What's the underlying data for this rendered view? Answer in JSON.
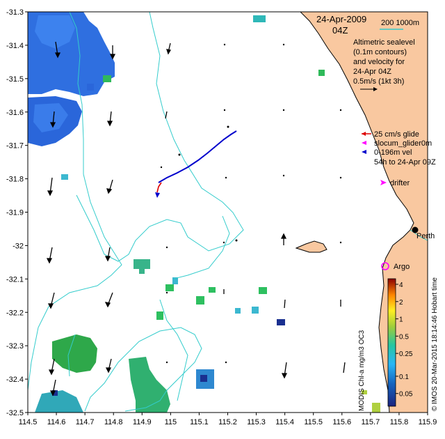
{
  "map": {
    "date": "24-Apr-2009",
    "time": "04Z",
    "scale_label": "200  1000m",
    "legend_lines": [
      "Altimetric sealevel",
      "(0.1m contours)",
      "and velocity for",
      "24-Apr 04Z",
      "0.5m/s (1kt 3h)"
    ],
    "track_legend": [
      {
        "label": "25 cm/s glide",
        "color": "#dd0000"
      },
      {
        "label": "slocum_glider0m",
        "color": "#ff00ff"
      },
      {
        "label": "0-196m vel",
        "color": "#0000cc"
      },
      {
        "label": "54h to 24-Apr 09Z",
        "color": ""
      }
    ],
    "drifter_label": "drifter",
    "argo_label": "Argo",
    "place_label": "Perth",
    "credit": "© IMOS 20-Mar-2015 18:14:46 Hobart time",
    "colorbar_title": "MODIS Chl-a mg/m3 OC3",
    "colorbar_ticks": [
      "4",
      "2",
      "1",
      "0.5",
      "0.25",
      "0.1",
      "0.05"
    ],
    "x_ticks": [
      "114.5",
      "114.6",
      "114.7",
      "114.8",
      "114.9",
      "115",
      "115.1",
      "115.2",
      "115.3",
      "115.4",
      "115.5",
      "115.6",
      "115.7",
      "115.8",
      "115.9"
    ],
    "y_ticks": [
      "-31.3",
      "-31.4",
      "-31.5",
      "-31.6",
      "-31.7",
      "-31.8",
      "-31.9",
      "-32",
      "-32.1",
      "-32.2",
      "-32.3",
      "-32.4",
      "-32.5"
    ],
    "colors": {
      "land": "#f9c8a0",
      "contour": "#33cccc",
      "glider_track": "#0000cc",
      "glider_recent": "#dd0000",
      "argo": "#ff00ff"
    }
  }
}
